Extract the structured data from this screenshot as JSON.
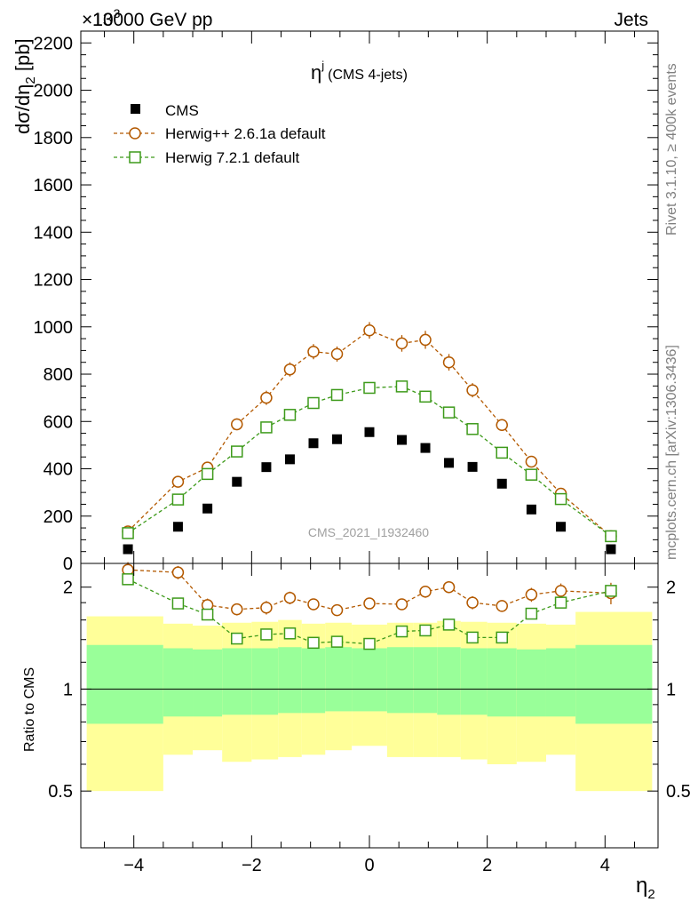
{
  "header": {
    "left": "13000 GeV pp",
    "right": "Jets",
    "exponent": "×10",
    "exponent_power": "3"
  },
  "side_labels": {
    "rivet": "Rivet 3.1.10, ≥ 400k events",
    "mcplots": "mcplots.cern.ch [arXiv:1306.3436]"
  },
  "watermark": "CMS_2021_I1932460",
  "plot_title": {
    "main": "η",
    "sup": "j",
    "sub": "(CMS 4-jets)"
  },
  "main_ylabel": {
    "prefix": "dσ/dη",
    "sub": "2",
    "unit": " [pb]"
  },
  "ratio_ylabel": "Ratio to CMS",
  "xlabel": {
    "main": "η",
    "sub": "2"
  },
  "colors": {
    "cms": "#000000",
    "herwigpp": "#b35900",
    "herwig7": "#3d9a1a",
    "band_inner": "#99ff99",
    "band_outer": "#ffff99"
  },
  "chart_data": {
    "type": "scatter",
    "x": [
      -4.1,
      -3.25,
      -2.75,
      -2.25,
      -1.75,
      -1.35,
      -0.95,
      -0.55,
      0.0,
      0.55,
      0.95,
      1.35,
      1.75,
      2.25,
      2.75,
      3.25,
      4.1
    ],
    "xlim": [
      -4.9,
      4.9
    ],
    "main": {
      "ylim": [
        0,
        2250
      ],
      "yticks": [
        0,
        200,
        400,
        600,
        800,
        1000,
        1200,
        1400,
        1600,
        1800,
        2000,
        2200
      ],
      "ytick_labels": [
        "0",
        "200",
        "400",
        "600",
        "800",
        "1000",
        "1200",
        "1400",
        "1600",
        "1800",
        "2000",
        "2200"
      ],
      "series": [
        {
          "name": "CMS",
          "marker": "square-filled",
          "values": [
            60,
            155,
            232,
            345,
            407,
            440,
            508,
            525,
            555,
            522,
            488,
            425,
            408,
            337,
            228,
            155,
            60
          ]
        },
        {
          "name": "Herwig++ 2.6.1a default",
          "marker": "circle-open",
          "values": [
            135,
            345,
            405,
            588,
            700,
            820,
            895,
            885,
            985,
            930,
            945,
            850,
            732,
            585,
            430,
            295,
            115
          ],
          "errors": [
            12,
            20,
            22,
            25,
            30,
            30,
            32,
            32,
            35,
            35,
            38,
            35,
            30,
            25,
            22,
            18,
            10
          ]
        },
        {
          "name": "Herwig 7.2.1 default",
          "marker": "square-open",
          "values": [
            128,
            270,
            378,
            473,
            575,
            628,
            678,
            712,
            742,
            748,
            705,
            638,
            568,
            468,
            375,
            272,
            115
          ],
          "errors": [
            6,
            8,
            8,
            10,
            10,
            10,
            12,
            12,
            12,
            12,
            12,
            10,
            10,
            10,
            8,
            8,
            6
          ]
        }
      ]
    },
    "ratio": {
      "ylim": [
        0.34,
        2.35
      ],
      "scale": "log",
      "yticks": [
        0.5,
        1,
        2
      ],
      "ytick_labels": [
        "0.5",
        "1",
        "2"
      ],
      "bins": [
        -4.8,
        -3.5,
        -3.0,
        -2.5,
        -2.0,
        -1.55,
        -1.15,
        -0.75,
        -0.3,
        0.3,
        0.75,
        1.15,
        1.55,
        2.0,
        2.5,
        3.0,
        3.5,
        4.8
      ],
      "band_inner": {
        "lo": [
          0.79,
          0.83,
          0.83,
          0.84,
          0.84,
          0.85,
          0.85,
          0.86,
          0.86,
          0.85,
          0.85,
          0.84,
          0.84,
          0.83,
          0.83,
          0.83,
          0.79
        ],
        "hi": [
          1.35,
          1.32,
          1.31,
          1.32,
          1.32,
          1.33,
          1.32,
          1.33,
          1.32,
          1.33,
          1.33,
          1.33,
          1.32,
          1.32,
          1.31,
          1.32,
          1.35
        ]
      },
      "band_outer": {
        "lo": [
          0.5,
          0.64,
          0.66,
          0.61,
          0.62,
          0.63,
          0.64,
          0.66,
          0.68,
          0.63,
          0.63,
          0.63,
          0.62,
          0.6,
          0.61,
          0.64,
          0.5
        ],
        "hi": [
          1.64,
          1.56,
          1.54,
          1.57,
          1.58,
          1.6,
          1.56,
          1.57,
          1.55,
          1.57,
          1.57,
          1.59,
          1.58,
          1.57,
          1.56,
          1.55,
          1.69
        ]
      },
      "series": [
        {
          "name": "Herwig++ 2.6.1a default",
          "values": [
            2.25,
            2.21,
            1.77,
            1.72,
            1.74,
            1.86,
            1.78,
            1.71,
            1.79,
            1.78,
            1.94,
            2.0,
            1.8,
            1.76,
            1.9,
            1.95,
            1.92
          ],
          "errors": [
            0.12,
            0.1,
            0.08,
            0.07,
            0.08,
            0.08,
            0.07,
            0.06,
            0.06,
            0.06,
            0.08,
            0.08,
            0.08,
            0.07,
            0.09,
            0.1,
            0.14
          ]
        },
        {
          "name": "Herwig 7.2.1 default",
          "values": [
            2.11,
            1.79,
            1.66,
            1.41,
            1.45,
            1.46,
            1.37,
            1.38,
            1.36,
            1.48,
            1.49,
            1.55,
            1.42,
            1.42,
            1.67,
            1.8,
            1.95
          ],
          "errors": [
            0.03,
            0.03,
            0.03,
            0.03,
            0.03,
            0.03,
            0.03,
            0.03,
            0.03,
            0.03,
            0.03,
            0.03,
            0.03,
            0.03,
            0.03,
            0.03,
            0.03
          ]
        }
      ]
    },
    "xticks": [
      -4,
      -2,
      0,
      2,
      4
    ],
    "xtick_labels": [
      "−4",
      "−2",
      "0",
      "2",
      "4"
    ]
  }
}
